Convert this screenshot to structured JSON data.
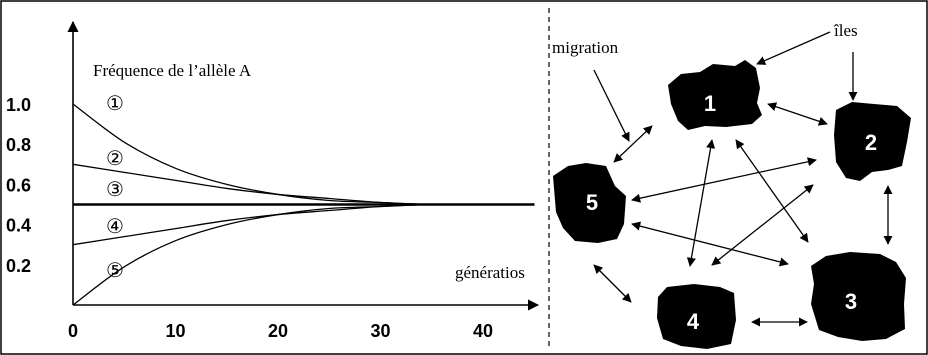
{
  "chart_data": {
    "type": "line",
    "title": "Fréquence de l’allèle A",
    "xlabel": "génératios",
    "ylabel": "",
    "xlim": [
      0,
      46
    ],
    "ylim": [
      0,
      1.15
    ],
    "x_ticks": [
      "0",
      "10",
      "20",
      "30",
      "40"
    ],
    "y_ticks": [
      "0.2",
      "0.4",
      "0.6",
      "0.8",
      "1.0"
    ],
    "x": [
      0,
      5,
      10,
      15,
      20,
      25,
      30,
      35,
      40,
      45
    ],
    "series": [
      {
        "name": "①",
        "values": [
          1.0,
          0.81,
          0.68,
          0.6,
          0.55,
          0.52,
          0.51,
          0.5,
          0.5,
          0.5
        ]
      },
      {
        "name": "②",
        "values": [
          0.7,
          0.66,
          0.62,
          0.58,
          0.55,
          0.53,
          0.51,
          0.5,
          0.5,
          0.5
        ]
      },
      {
        "name": "③",
        "values": [
          0.5,
          0.5,
          0.5,
          0.5,
          0.5,
          0.5,
          0.5,
          0.5,
          0.5,
          0.5
        ]
      },
      {
        "name": "④",
        "values": [
          0.3,
          0.34,
          0.38,
          0.42,
          0.45,
          0.47,
          0.49,
          0.5,
          0.5,
          0.5
        ]
      },
      {
        "name": "⑤",
        "values": [
          0.0,
          0.19,
          0.32,
          0.4,
          0.45,
          0.48,
          0.49,
          0.5,
          0.5,
          0.5
        ]
      }
    ],
    "grid": false
  },
  "diagram": {
    "migration_label": "migration",
    "islands_label": "îles",
    "islands": [
      {
        "id": "island-1",
        "label": "1"
      },
      {
        "id": "island-2",
        "label": "2"
      },
      {
        "id": "island-3",
        "label": "3"
      },
      {
        "id": "island-4",
        "label": "4"
      },
      {
        "id": "island-5",
        "label": "5"
      }
    ],
    "colors": {
      "ink": "#000000",
      "island_fill": "#000000",
      "island_text": "#ffffff",
      "background": "#ffffff"
    }
  }
}
